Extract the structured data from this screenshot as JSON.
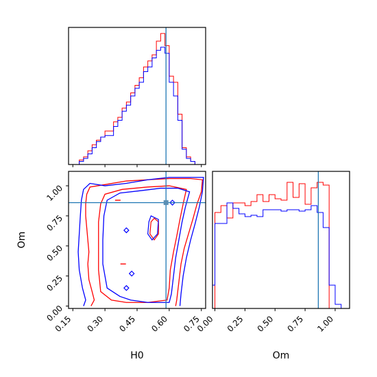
{
  "chart_data": {
    "type": "corner",
    "parameters": [
      "H0",
      "Om"
    ],
    "xlabels": {
      "h0": "H0",
      "om": "Om"
    },
    "ylabel": "Om",
    "h0_ticks": [
      "0.15",
      "0.30",
      "0.45",
      "0.60",
      "0.75"
    ],
    "om_ticks": [
      "0.00",
      "0.25",
      "0.50",
      "0.75",
      "1.00"
    ],
    "h0_range": [
      0.13,
      0.77
    ],
    "om_range": [
      -0.02,
      1.12
    ],
    "truth": {
      "H0": 0.585,
      "Om": 0.86
    },
    "colors": {
      "red": "#ff0000",
      "blue": "#0000ff",
      "truth": "#1f77b4"
    },
    "hist_h0": {
      "edges": [
        0.18,
        0.2,
        0.22,
        0.24,
        0.26,
        0.28,
        0.3,
        0.32,
        0.34,
        0.36,
        0.38,
        0.4,
        0.42,
        0.44,
        0.46,
        0.48,
        0.5,
        0.52,
        0.54,
        0.56,
        0.58,
        0.6,
        0.62,
        0.64,
        0.66,
        0.68,
        0.7,
        0.72,
        0.74
      ],
      "red": [
        3,
        5,
        9,
        13,
        16,
        18,
        22,
        22,
        28,
        31,
        37,
        41,
        47,
        52,
        57,
        64,
        68,
        72,
        81,
        86,
        78,
        58,
        54,
        33,
        11,
        5,
        2,
        0
      ],
      "blue": [
        2,
        4,
        7,
        11,
        15,
        18,
        19,
        19,
        25,
        29,
        35,
        39,
        45,
        50,
        54,
        61,
        64,
        70,
        75,
        77,
        73,
        54,
        45,
        29,
        10,
        4,
        2,
        0
      ]
    },
    "hist_om": {
      "edges": [
        -0.05,
        0.0,
        0.05,
        0.1,
        0.15,
        0.2,
        0.25,
        0.3,
        0.35,
        0.4,
        0.45,
        0.5,
        0.55,
        0.6,
        0.65,
        0.7,
        0.75,
        0.8,
        0.85,
        0.9,
        0.95,
        1.0,
        1.05,
        1.1
      ],
      "red": [
        0,
        70,
        75,
        66,
        77,
        77,
        75,
        78,
        83,
        78,
        83,
        80,
        79,
        92,
        81,
        91,
        76,
        88,
        92,
        90,
        0,
        0,
        0
      ],
      "blue": [
        17,
        62,
        62,
        77,
        73,
        69,
        67,
        68,
        67,
        72,
        72,
        72,
        71,
        72,
        72,
        71,
        72,
        75,
        70,
        59,
        17,
        3,
        0
      ]
    },
    "contours": {
      "red_outer": [
        [
          0.235,
          0.0
        ],
        [
          0.25,
          0.05
        ],
        [
          0.24,
          0.12
        ],
        [
          0.225,
          0.22
        ],
        [
          0.22,
          0.35
        ],
        [
          0.225,
          0.45
        ],
        [
          0.22,
          0.55
        ],
        [
          0.215,
          0.65
        ],
        [
          0.21,
          0.75
        ],
        [
          0.21,
          0.85
        ],
        [
          0.215,
          0.93
        ],
        [
          0.23,
          0.99
        ],
        [
          0.3,
          1.01
        ],
        [
          0.4,
          1.04
        ],
        [
          0.5,
          1.05
        ],
        [
          0.6,
          1.06
        ],
        [
          0.7,
          1.06
        ],
        [
          0.755,
          1.05
        ],
        [
          0.75,
          0.95
        ],
        [
          0.73,
          0.85
        ],
        [
          0.71,
          0.72
        ],
        [
          0.69,
          0.6
        ],
        [
          0.67,
          0.48
        ],
        [
          0.655,
          0.35
        ],
        [
          0.645,
          0.2
        ],
        [
          0.635,
          0.05
        ],
        [
          0.63,
          0.0
        ]
      ],
      "red_inner": [
        [
          0.33,
          0.05
        ],
        [
          0.28,
          0.12
        ],
        [
          0.27,
          0.3
        ],
        [
          0.27,
          0.5
        ],
        [
          0.27,
          0.7
        ],
        [
          0.28,
          0.85
        ],
        [
          0.3,
          0.93
        ],
        [
          0.38,
          0.97
        ],
        [
          0.5,
          0.99
        ],
        [
          0.6,
          1.0
        ],
        [
          0.68,
          0.97
        ],
        [
          0.665,
          0.85
        ],
        [
          0.65,
          0.72
        ],
        [
          0.635,
          0.58
        ],
        [
          0.62,
          0.45
        ],
        [
          0.605,
          0.3
        ],
        [
          0.6,
          0.15
        ],
        [
          0.59,
          0.05
        ],
        [
          0.5,
          0.03
        ],
        [
          0.4,
          0.03
        ]
      ],
      "blue_outer": [
        [
          0.2,
          0.0
        ],
        [
          0.21,
          0.05
        ],
        [
          0.195,
          0.15
        ],
        [
          0.18,
          0.3
        ],
        [
          0.175,
          0.45
        ],
        [
          0.18,
          0.6
        ],
        [
          0.185,
          0.75
        ],
        [
          0.19,
          0.88
        ],
        [
          0.2,
          0.97
        ],
        [
          0.23,
          1.02
        ],
        [
          0.3,
          1.0
        ],
        [
          0.4,
          1.02
        ],
        [
          0.5,
          1.05
        ],
        [
          0.6,
          1.07
        ],
        [
          0.7,
          1.07
        ],
        [
          0.76,
          1.07
        ],
        [
          0.755,
          0.95
        ],
        [
          0.74,
          0.82
        ],
        [
          0.72,
          0.68
        ],
        [
          0.7,
          0.55
        ],
        [
          0.68,
          0.4
        ],
        [
          0.665,
          0.25
        ],
        [
          0.655,
          0.1
        ],
        [
          0.65,
          0.0
        ]
      ],
      "blue_inner": [
        [
          0.37,
          0.08
        ],
        [
          0.31,
          0.15
        ],
        [
          0.29,
          0.35
        ],
        [
          0.29,
          0.55
        ],
        [
          0.295,
          0.75
        ],
        [
          0.31,
          0.88
        ],
        [
          0.37,
          0.94
        ],
        [
          0.47,
          0.96
        ],
        [
          0.56,
          0.98
        ],
        [
          0.64,
          0.98
        ],
        [
          0.695,
          0.95
        ],
        [
          0.675,
          0.82
        ],
        [
          0.66,
          0.7
        ],
        [
          0.645,
          0.55
        ],
        [
          0.63,
          0.4
        ],
        [
          0.62,
          0.25
        ],
        [
          0.61,
          0.1
        ],
        [
          0.6,
          0.03
        ],
        [
          0.5,
          0.03
        ],
        [
          0.42,
          0.05
        ]
      ],
      "red_small": [
        [
          0.53,
          0.73
        ],
        [
          0.55,
          0.7
        ],
        [
          0.55,
          0.6
        ],
        [
          0.53,
          0.55
        ],
        [
          0.51,
          0.6
        ],
        [
          0.515,
          0.7
        ]
      ],
      "blue_small": [
        [
          0.515,
          0.75
        ],
        [
          0.55,
          0.72
        ],
        [
          0.545,
          0.6
        ],
        [
          0.52,
          0.55
        ],
        [
          0.5,
          0.6
        ],
        [
          0.505,
          0.7
        ]
      ],
      "blue_diamonds": [
        [
          0.4,
          0.15
        ],
        [
          0.4,
          0.63
        ],
        [
          0.425,
          0.27
        ],
        [
          0.615,
          0.86
        ]
      ],
      "red_dots": [
        [
          0.36,
          0.88
        ],
        [
          0.385,
          0.35
        ]
      ]
    }
  }
}
